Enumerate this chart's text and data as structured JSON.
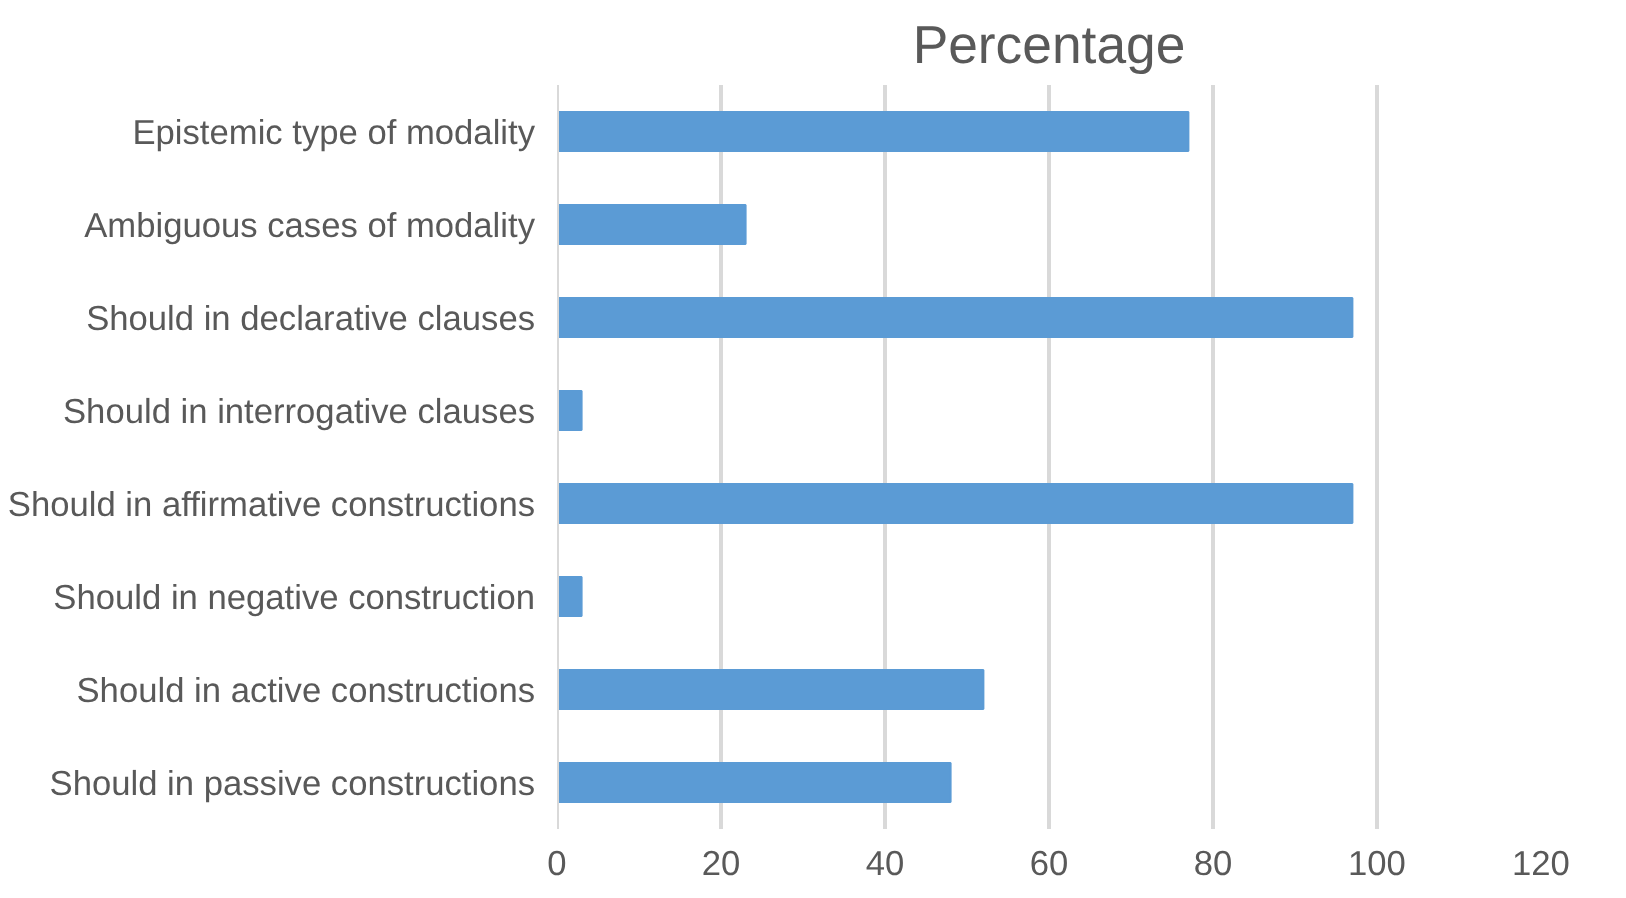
{
  "chart_data": {
    "type": "bar",
    "orientation": "horizontal",
    "title": "Percentage",
    "categories": [
      "Epistemic type of modality",
      "Ambiguous cases of modality",
      "Should in declarative clauses",
      "Should in interrogative clauses",
      "Should in affirmative constructions",
      "Should in negative construction",
      "Should in active constructions",
      "Should in passive constructions"
    ],
    "values": [
      77,
      23,
      97,
      3,
      97,
      3,
      52,
      48
    ],
    "color": "#5b9bd5",
    "xlim": [
      0,
      120
    ],
    "xticks": [
      0,
      20,
      40,
      60,
      80,
      100,
      120
    ],
    "grid": "x"
  }
}
